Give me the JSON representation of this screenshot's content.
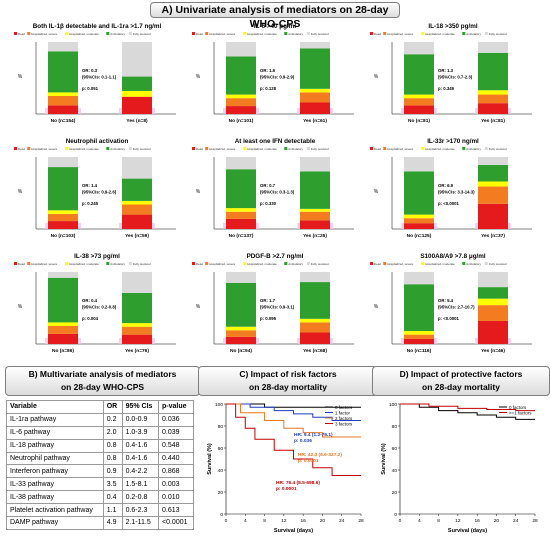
{
  "banners": {
    "a": "A) Univariate analysis of mediators on 28-day WHO-CPS",
    "b_line1": "B) Multivariate analysis of mediators",
    "b_line2": "on 28-day WHO-CPS",
    "c_line1": "C) Impact of risk factors",
    "c_line2": "on 28-day mortality",
    "d_line1": "D) Impact of protective factors",
    "d_line2": "on 28-day mortality"
  },
  "legend_labels": [
    "Dead",
    "Hospitalized, severe",
    "Hospitalized, moderate",
    "Ambulatory",
    "Fully resolved"
  ],
  "colors": {
    "dead": "#e41a1c",
    "severe": "#f47c20",
    "moderate": "#ffff00",
    "ambulatory": "#2e9e2e",
    "resolved": "#d9d9d9",
    "pink_band": "#f6c3e8"
  },
  "chart_data": [
    {
      "type": "bar",
      "stacked": true,
      "title": "Both IL-1β detectable and IL-1ra >1.7 ng/ml",
      "ylabel": "%",
      "ylim": [
        0,
        100
      ],
      "categories": [
        "No (n=154)",
        "Yes (n=8)"
      ],
      "series": [
        {
          "name": "Dead",
          "values": [
            12,
            24
          ]
        },
        {
          "name": "Hospitalized, severe",
          "values": [
            13,
            0
          ]
        },
        {
          "name": "Hospitalized, moderate",
          "values": [
            5,
            8
          ]
        },
        {
          "name": "Ambulatory",
          "values": [
            57,
            20
          ]
        },
        {
          "name": "Fully resolved",
          "values": [
            13,
            48
          ]
        }
      ],
      "stats": [
        "OR: 0.3",
        "(95%CIs: 0.1-1.1)",
        "p: 0.051"
      ]
    },
    {
      "type": "bar",
      "stacked": true,
      "title": "IL-6 >40 pg/ml",
      "ylabel": "%",
      "ylim": [
        0,
        100
      ],
      "categories": [
        "No (n=101)",
        "Yes (n=61)"
      ],
      "series": [
        {
          "name": "Dead",
          "values": [
            11,
            16
          ]
        },
        {
          "name": "Hospitalized, severe",
          "values": [
            11,
            14
          ]
        },
        {
          "name": "Hospitalized, moderate",
          "values": [
            5,
            5
          ]
        },
        {
          "name": "Ambulatory",
          "values": [
            53,
            56
          ]
        },
        {
          "name": "Fully resolved",
          "values": [
            20,
            9
          ]
        }
      ],
      "stats": [
        "OR: 1.6",
        "(95%CIs: 0.9-2.9)",
        "p: 0.128"
      ]
    },
    {
      "type": "bar",
      "stacked": true,
      "title": "IL-18 >350 pg/ml",
      "ylabel": "%",
      "ylim": [
        0,
        100
      ],
      "categories": [
        "No (n=81)",
        "Yes (n=81)"
      ],
      "series": [
        {
          "name": "Dead",
          "values": [
            12,
            15
          ]
        },
        {
          "name": "Hospitalized, severe",
          "values": [
            10,
            12
          ]
        },
        {
          "name": "Hospitalized, moderate",
          "values": [
            5,
            6
          ]
        },
        {
          "name": "Ambulatory",
          "values": [
            56,
            52
          ]
        },
        {
          "name": "Fully resolved",
          "values": [
            17,
            15
          ]
        }
      ],
      "stats": [
        "OR: 1.3",
        "(95%CIs: 0.7-2.3)",
        "p: 0.349"
      ]
    },
    {
      "type": "bar",
      "stacked": true,
      "title": "Neutrophil activation",
      "ylabel": "%",
      "ylim": [
        0,
        100
      ],
      "categories": [
        "No (n=103)",
        "Yes (n=59)"
      ],
      "series": [
        {
          "name": "Dead",
          "values": [
            11,
            20
          ]
        },
        {
          "name": "Hospitalized, severe",
          "values": [
            10,
            14
          ]
        },
        {
          "name": "Hospitalized, moderate",
          "values": [
            5,
            5
          ]
        },
        {
          "name": "Ambulatory",
          "values": [
            60,
            31
          ]
        },
        {
          "name": "Fully resolved",
          "values": [
            14,
            30
          ]
        }
      ],
      "stats": [
        "OR: 1.4",
        "(95%CIs: 0.9-2.6)",
        "p: 0.245"
      ]
    },
    {
      "type": "bar",
      "stacked": true,
      "title": "At least one IFN detectable",
      "ylabel": "%",
      "ylim": [
        0,
        100
      ],
      "categories": [
        "No (n=137)",
        "Yes (n=25)"
      ],
      "series": [
        {
          "name": "Dead",
          "values": [
            14,
            12
          ]
        },
        {
          "name": "Hospitalized, severe",
          "values": [
            10,
            12
          ]
        },
        {
          "name": "Hospitalized, moderate",
          "values": [
            5,
            4
          ]
        },
        {
          "name": "Ambulatory",
          "values": [
            54,
            52
          ]
        },
        {
          "name": "Fully resolved",
          "values": [
            17,
            20
          ]
        }
      ],
      "stats": [
        "OR: 0.7",
        "(95%CIs: 0.3-1.3)",
        "p: 0.330"
      ]
    },
    {
      "type": "bar",
      "stacked": true,
      "title": "IL-33r >170 ng/ml",
      "ylabel": "%",
      "ylim": [
        0,
        100
      ],
      "categories": [
        "No (n=125)",
        "Yes (n=37)"
      ],
      "series": [
        {
          "name": "Dead",
          "values": [
            8,
            35
          ]
        },
        {
          "name": "Hospitalized, severe",
          "values": [
            7,
            24
          ]
        },
        {
          "name": "Hospitalized, moderate",
          "values": [
            5,
            7
          ]
        },
        {
          "name": "Ambulatory",
          "values": [
            60,
            23
          ]
        },
        {
          "name": "Fully resolved",
          "values": [
            20,
            11
          ]
        }
      ],
      "stats": [
        "OR: 6.9",
        "(95%CIs: 3.3-14.3)",
        "p: <0.0001"
      ]
    },
    {
      "type": "bar",
      "stacked": true,
      "title": "IL-38 >73 pg/ml",
      "ylabel": "%",
      "ylim": [
        0,
        100
      ],
      "categories": [
        "No (n=86)",
        "Yes (n=76)"
      ],
      "series": [
        {
          "name": "Dead",
          "values": [
            14,
            13
          ]
        },
        {
          "name": "Hospitalized, severe",
          "values": [
            11,
            11
          ]
        },
        {
          "name": "Hospitalized, moderate",
          "values": [
            5,
            5
          ]
        },
        {
          "name": "Ambulatory",
          "values": [
            62,
            42
          ]
        },
        {
          "name": "Fully resolved",
          "values": [
            8,
            29
          ]
        }
      ],
      "stats": [
        "OR: 0.4",
        "(95%CIs: 0.2-0.8)",
        "p: 0.004"
      ]
    },
    {
      "type": "bar",
      "stacked": true,
      "title": "PDGF-B >2.7 ng/ml",
      "ylabel": "%",
      "ylim": [
        0,
        100
      ],
      "categories": [
        "No (n=94)",
        "Yes (n=68)"
      ],
      "series": [
        {
          "name": "Dead",
          "values": [
            10,
            16
          ]
        },
        {
          "name": "Hospitalized, severe",
          "values": [
            9,
            14
          ]
        },
        {
          "name": "Hospitalized, moderate",
          "values": [
            5,
            5
          ]
        },
        {
          "name": "Ambulatory",
          "values": [
            61,
            51
          ]
        },
        {
          "name": "Fully resolved",
          "values": [
            15,
            14
          ]
        }
      ],
      "stats": [
        "OR: 1.7",
        "(95%CIs: 0.9-3.1)",
        "p: 0.095"
      ]
    },
    {
      "type": "bar",
      "stacked": true,
      "title": "S100A8/A9 >7.8 μg/ml",
      "ylabel": "%",
      "ylim": [
        0,
        100
      ],
      "categories": [
        "No (n=116)",
        "Yes (n=46)"
      ],
      "series": [
        {
          "name": "Dead",
          "values": [
            7,
            32
          ]
        },
        {
          "name": "Hospitalized, severe",
          "values": [
            6,
            22
          ]
        },
        {
          "name": "Hospitalized, moderate",
          "values": [
            5,
            9
          ]
        },
        {
          "name": "Ambulatory",
          "values": [
            65,
            16
          ]
        },
        {
          "name": "Fully resolved",
          "values": [
            17,
            21
          ]
        }
      ],
      "stats": [
        "OR: 5.4",
        "(95%CIs: 2.7-10.7)",
        "p: <0.0001"
      ]
    },
    {
      "type": "line",
      "step": true,
      "xlabel": "Survival (days)",
      "ylabel": "Survival (%)",
      "xlim": [
        0,
        28
      ],
      "ylim": [
        0,
        100
      ],
      "xticks": [
        0,
        4,
        8,
        12,
        16,
        20,
        24,
        28
      ],
      "yticks": [
        0,
        20,
        40,
        60,
        80,
        100
      ],
      "series": [
        {
          "name": "0 factors",
          "x": [
            0,
            8,
            28
          ],
          "y": [
            100,
            97,
            97
          ]
        },
        {
          "name": "1 factor",
          "x": [
            0,
            5,
            10,
            14,
            18,
            22,
            28
          ],
          "y": [
            100,
            97,
            94,
            91,
            88,
            85,
            85
          ]
        },
        {
          "name": "2 factors",
          "x": [
            0,
            3,
            8,
            12,
            16,
            20,
            28
          ],
          "y": [
            100,
            92,
            85,
            78,
            74,
            70,
            70
          ]
        },
        {
          "name": "3 factors",
          "x": [
            0,
            2,
            4,
            6,
            10,
            14,
            18,
            22,
            28
          ],
          "y": [
            100,
            88,
            78,
            68,
            58,
            50,
            42,
            35,
            35
          ]
        }
      ],
      "annotations": [
        {
          "text": "HR: 9.4 (1.2-76.1)",
          "color": "#1f3fbf"
        },
        {
          "text": "p: 0.036",
          "color": "#1f3fbf"
        },
        {
          "text": "HR: 42.0 (6.6-327.2)",
          "color": "#e87722"
        },
        {
          "text": "p: 0.0001",
          "color": "#e87722"
        },
        {
          "text": "HR: 76.4 (8.5-698.6)",
          "color": "#c00000"
        },
        {
          "text": "p: 0.0001",
          "color": "#c00000"
        }
      ]
    },
    {
      "type": "line",
      "step": true,
      "xlabel": "Survival (days)",
      "ylabel": "Survival (%)",
      "xlim": [
        0,
        28
      ],
      "ylim": [
        0,
        100
      ],
      "xticks": [
        0,
        4,
        8,
        12,
        16,
        20,
        24,
        28
      ],
      "yticks": [
        0,
        20,
        40,
        60,
        80,
        100
      ],
      "series": [
        {
          "name": "0 factors",
          "x": [
            0,
            4,
            8,
            12,
            16,
            20,
            24,
            28
          ],
          "y": [
            100,
            97,
            94,
            92,
            90,
            88,
            86,
            86
          ]
        },
        {
          "name": ">=1 factors",
          "x": [
            0,
            6,
            12,
            18,
            24,
            28
          ],
          "y": [
            100,
            98,
            96,
            95,
            94,
            94
          ]
        }
      ]
    }
  ],
  "km_c_legend": [
    "0 factors",
    "1 factor",
    "2 factors",
    "3 factors"
  ],
  "km_d_legend": [
    "0 factors",
    ">=1 factors"
  ],
  "table": {
    "headers": [
      "Variable",
      "OR",
      "95%  CIs",
      "p-value"
    ],
    "rows": [
      [
        "IL-1ra pathway",
        "0.2",
        "0.0-0.9",
        "0.036"
      ],
      [
        "IL-6 pathway",
        "2.0",
        "1.0-3.9",
        "0.039"
      ],
      [
        "IL-18 pathway",
        "0.8",
        "0.4-1.6",
        "0.548"
      ],
      [
        "Neutrophil pathway",
        "0.8",
        "0.4-1.6",
        "0.440"
      ],
      [
        "Interferon pathway",
        "0.9",
        "0.4-2.2",
        "0.868"
      ],
      [
        "IL-33 pathway",
        "3.5",
        "1.5-8.1",
        "0.003"
      ],
      [
        "IL-38 pathway",
        "0.4",
        "0.2-0.8",
        "0.010"
      ],
      [
        "Platelet activation pathway",
        "1.1",
        "0.6-2.3",
        "0.613"
      ],
      [
        "DAMP pathway",
        "4.9",
        "2.1-11.5",
        "<0.0001"
      ]
    ]
  }
}
